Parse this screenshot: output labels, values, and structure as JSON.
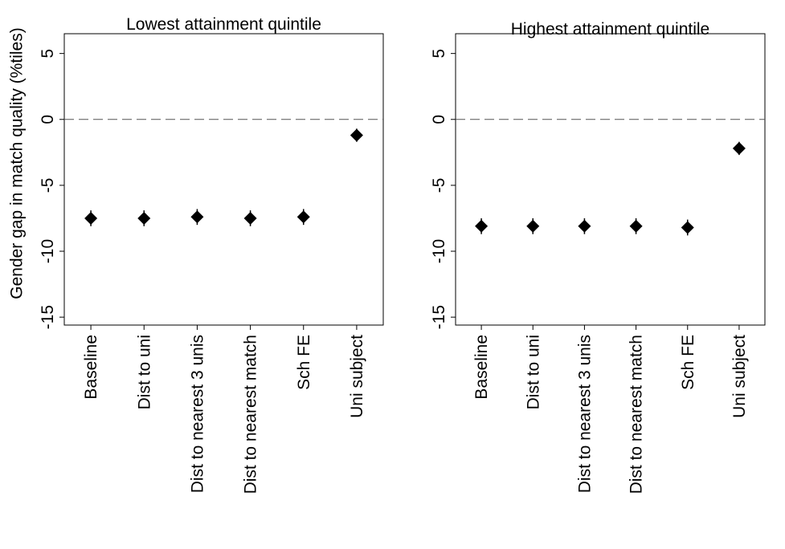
{
  "chart_data": [
    {
      "type": "scatter",
      "title": "Lowest attainment quintile",
      "ylabel": "Gender gap in match quality (%tiles)",
      "categories": [
        "Baseline",
        "Dist to uni",
        "Dist to nearest 3 unis",
        "Dist to nearest match",
        "Sch FE",
        "Uni subject"
      ],
      "values": [
        -7.5,
        -7.5,
        -7.4,
        -7.5,
        -7.4,
        -1.2
      ],
      "errors": [
        0.6,
        0.6,
        0.6,
        0.6,
        0.6,
        0.5
      ],
      "color": "#000000",
      "ylim": [
        -15.6,
        6.5
      ],
      "yticks": [
        5,
        0,
        -5,
        -10,
        -15
      ],
      "refline": 0
    },
    {
      "type": "scatter",
      "title": "Highest attainment quintile",
      "categories": [
        "Baseline",
        "Dist to uni",
        "Dist to nearest 3 unis",
        "Dist to nearest match",
        "Sch FE",
        "Uni subject"
      ],
      "values": [
        -8.1,
        -8.1,
        -8.1,
        -8.1,
        -8.2,
        -2.2
      ],
      "errors": [
        0.6,
        0.6,
        0.6,
        0.6,
        0.6,
        0.5
      ],
      "color": "#000000",
      "ylim": [
        -15.6,
        6.5
      ],
      "yticks": [
        5,
        0,
        -5,
        -10,
        -15
      ],
      "refline": 0
    }
  ]
}
